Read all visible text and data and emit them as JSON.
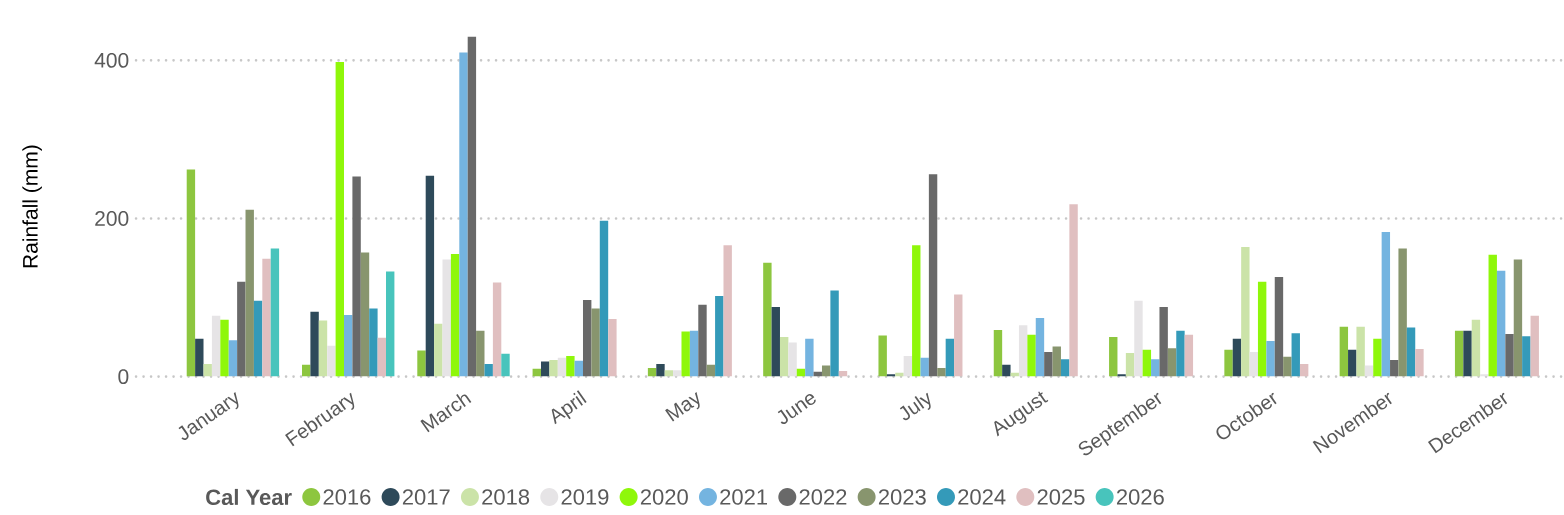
{
  "chart_data": {
    "type": "bar",
    "ylabel": "Rainfall (mm)",
    "legend_title": "Cal Year",
    "legend": "bottom",
    "grid": "y",
    "ylim": [
      0,
      430
    ],
    "yticks": [
      0,
      200,
      400
    ],
    "categories": [
      "January",
      "February",
      "March",
      "April",
      "May",
      "June",
      "July",
      "August",
      "September",
      "October",
      "November",
      "December"
    ],
    "series": [
      {
        "name": "2016",
        "color": "#8dc63f",
        "values": [
          262,
          15,
          33,
          10,
          11,
          144,
          52,
          59,
          50,
          34,
          63,
          58
        ]
      },
      {
        "name": "2017",
        "color": "#2e4a5a",
        "values": [
          48,
          82,
          254,
          19,
          16,
          88,
          3,
          15,
          3,
          48,
          34,
          58
        ]
      },
      {
        "name": "2018",
        "color": "#cbe3a8",
        "values": [
          16,
          71,
          67,
          21,
          8,
          50,
          5,
          5,
          30,
          164,
          63,
          72
        ]
      },
      {
        "name": "2019",
        "color": "#e6e4e6",
        "values": [
          77,
          39,
          148,
          24,
          8,
          43,
          26,
          65,
          96,
          31,
          14,
          3
        ]
      },
      {
        "name": "2020",
        "color": "#8ff70a",
        "values": [
          72,
          398,
          155,
          26,
          57,
          10,
          166,
          53,
          34,
          120,
          48,
          154
        ]
      },
      {
        "name": "2021",
        "color": "#74b4e0",
        "values": [
          46,
          78,
          410,
          20,
          58,
          48,
          24,
          74,
          22,
          45,
          183,
          134
        ]
      },
      {
        "name": "2022",
        "color": "#696969",
        "values": [
          120,
          253,
          430,
          97,
          91,
          6,
          256,
          31,
          88,
          126,
          21,
          54
        ]
      },
      {
        "name": "2023",
        "color": "#88956e",
        "values": [
          211,
          157,
          58,
          86,
          15,
          14,
          11,
          38,
          36,
          25,
          162,
          148
        ]
      },
      {
        "name": "2024",
        "color": "#349ab9",
        "values": [
          96,
          86,
          16,
          197,
          102,
          109,
          48,
          22,
          58,
          55,
          62,
          51
        ]
      },
      {
        "name": "2025",
        "color": "#e0bfc0",
        "values": [
          149,
          49,
          119,
          73,
          166,
          7,
          104,
          218,
          53,
          16,
          35,
          77
        ]
      },
      {
        "name": "2026",
        "color": "#48c4bc",
        "values": [
          162,
          133,
          29,
          null,
          null,
          null,
          null,
          null,
          null,
          null,
          null,
          null
        ]
      }
    ]
  }
}
